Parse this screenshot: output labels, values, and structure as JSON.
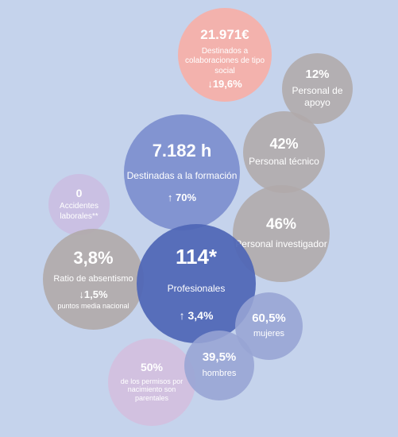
{
  "bubbles": {
    "collab": {
      "value": "21.971€",
      "label": "Destinados a colaboraciones de tipo social",
      "change": "↓19,6%"
    },
    "apoyo": {
      "value": "12%",
      "label": "Personal de apoyo"
    },
    "tecnico": {
      "value": "42%",
      "label": "Personal técnico"
    },
    "formacion": {
      "value": "7.182 h",
      "label": "Destinadas a la formación",
      "change": "↑ 70%"
    },
    "investigador": {
      "value": "46%",
      "label": "Personal investigador"
    },
    "accidentes": {
      "value": "0",
      "label": "Accidentes laborales**"
    },
    "absentismo": {
      "value": "3,8%",
      "label": "Ratio de absentismo",
      "change": "↓1,5%",
      "sub": "puntos media nacional"
    },
    "profesionales": {
      "value": "114*",
      "label": "Profesionales",
      "change": "↑ 3,4%"
    },
    "mujeres": {
      "value": "60,5%",
      "label": "mujeres"
    },
    "hombres": {
      "value": "39,5%",
      "label": "hombres"
    },
    "permisos": {
      "value": "50%",
      "label": "de los permisos por nacimiento son parentales"
    }
  },
  "colors": {
    "background": "#c5d3ec",
    "gray": "#b0aaaa",
    "coral": "#f6afa7",
    "blue_dark": "#4f66b6",
    "blue_mid": "#798bcd",
    "blue_light": "#97a4d4",
    "lavender": "#cabce2"
  }
}
